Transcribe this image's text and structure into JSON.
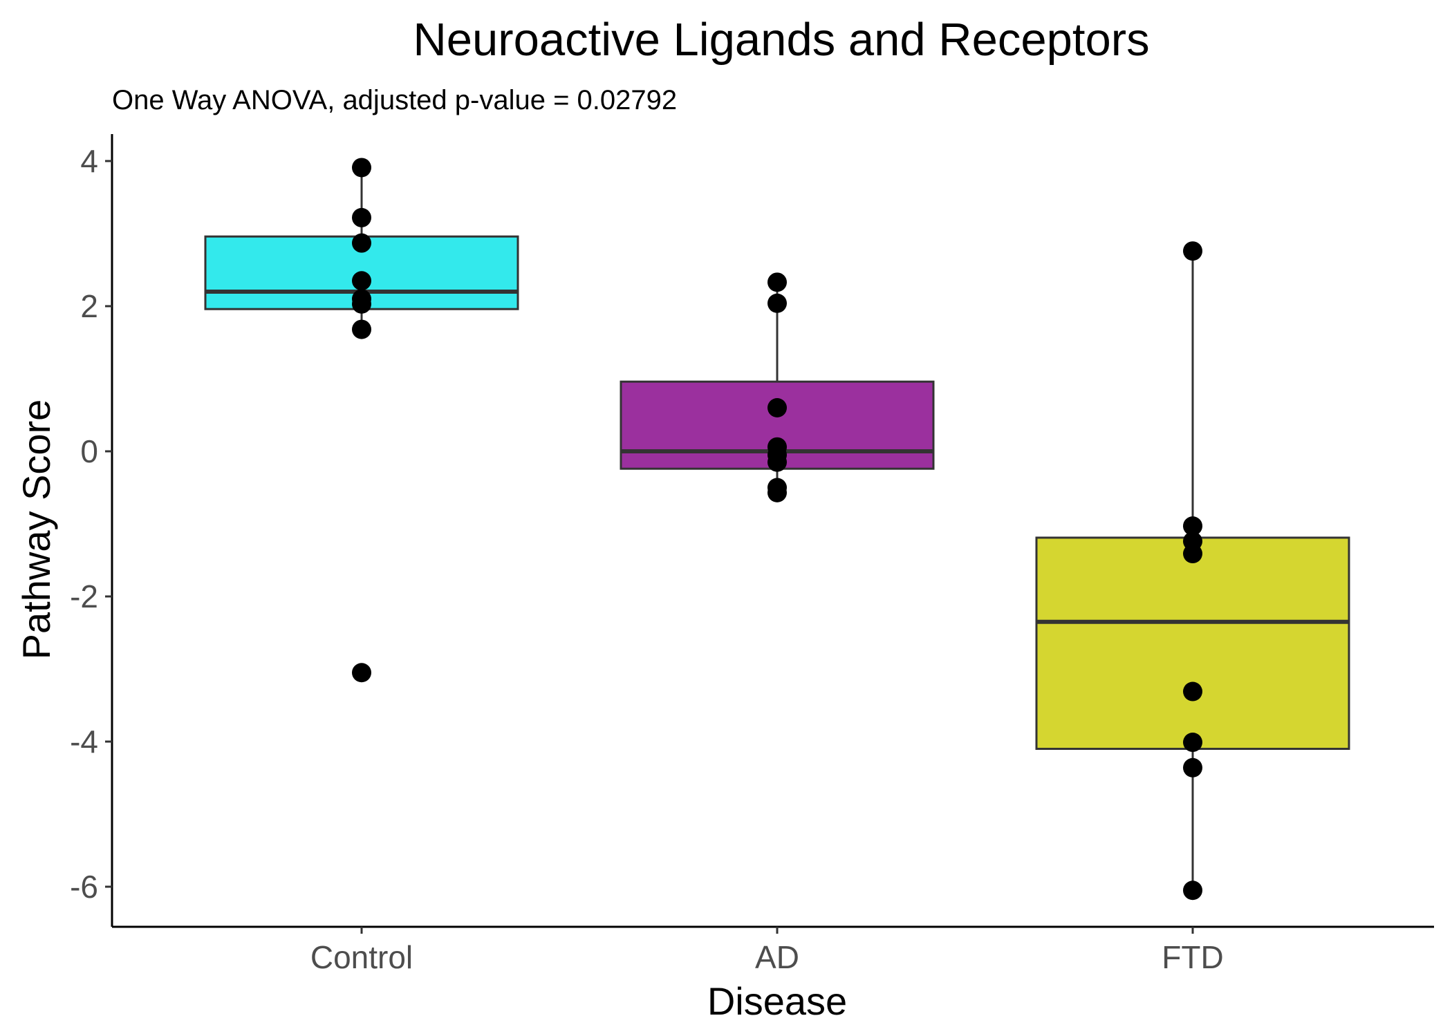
{
  "chart_data": {
    "type": "boxplot",
    "title": "Neuroactive Ligands and Receptors",
    "subtitle": "One Way ANOVA, adjusted p-value = 0.02792",
    "xlabel": "Disease",
    "ylabel": "Pathway Score",
    "ylim": [
      -6.6,
      4.3
    ],
    "yticks": [
      4,
      2,
      0,
      -2,
      -4,
      -6
    ],
    "ytick_labels": [
      "4",
      "2",
      "0",
      "-2",
      "-4",
      "-6"
    ],
    "grid": false,
    "legend": "none",
    "categories": [
      "Control",
      "AD",
      "FTD"
    ],
    "boxes": [
      {
        "category": "Control",
        "color": "#33e9ec",
        "q1": 1.96,
        "median": 2.2,
        "q3": 2.96,
        "whisker_low": 1.68,
        "whisker_high": 3.91,
        "points": [
          3.91,
          3.22,
          2.87,
          2.35,
          2.1,
          2.03,
          1.68,
          -3.05
        ]
      },
      {
        "category": "AD",
        "color": "#9b309e",
        "q1": -0.24,
        "median": 0.0,
        "q3": 0.96,
        "whisker_low": -0.57,
        "whisker_high": 2.33,
        "points": [
          2.33,
          2.04,
          0.6,
          0.06,
          -0.05,
          -0.15,
          -0.5,
          -0.57
        ]
      },
      {
        "category": "FTD",
        "color": "#d5d630",
        "q1": -4.1,
        "median": -2.35,
        "q3": -1.19,
        "whisker_low": -6.05,
        "whisker_high": 2.76,
        "points": [
          2.76,
          -1.03,
          -1.24,
          -1.41,
          -3.31,
          -4.01,
          -4.36,
          -6.05
        ]
      }
    ]
  }
}
